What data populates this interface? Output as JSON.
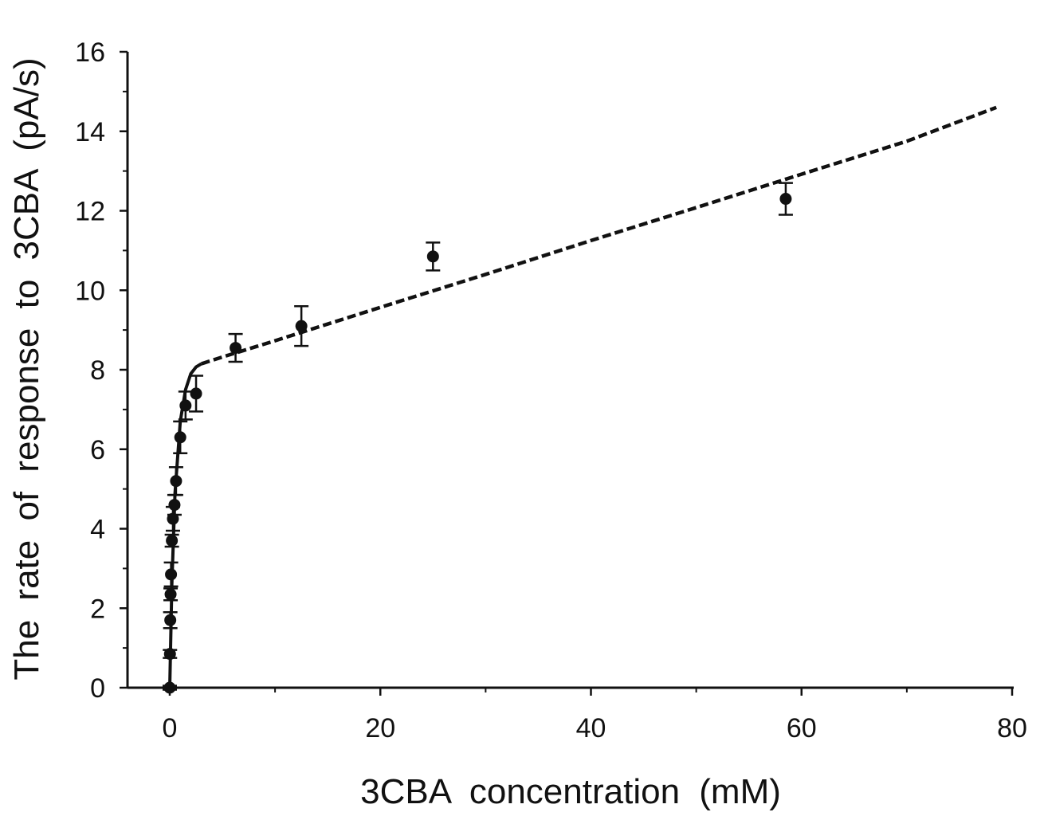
{
  "chart_data": {
    "type": "scatter",
    "title": "",
    "xlabel": "3CBA  concentration  (mM)",
    "ylabel": "The  rate  of  response  to  3CBA  (pA/s)",
    "xlim": [
      -4,
      80
    ],
    "ylim": [
      0,
      16
    ],
    "x_ticks": [
      0,
      20,
      40,
      60,
      80
    ],
    "y_ticks": [
      0,
      2,
      4,
      6,
      8,
      10,
      12,
      14,
      16
    ],
    "x_tick_labels": [
      "0",
      "20",
      "40",
      "60",
      "80"
    ],
    "y_tick_labels": [
      "0",
      "2",
      "4",
      "6",
      "8",
      "10",
      "12",
      "14",
      "16"
    ],
    "grid": false,
    "legend": "none",
    "series": [
      {
        "marker": "filled-circle",
        "points": [
          {
            "x": 0.0,
            "y": 0.0,
            "err": 0.05
          },
          {
            "x": 0.02,
            "y": 0.85,
            "err": 0.1
          },
          {
            "x": 0.05,
            "y": 1.7,
            "err": 0.2
          },
          {
            "x": 0.08,
            "y": 2.35,
            "err": 0.15
          },
          {
            "x": 0.12,
            "y": 2.85,
            "err": 0.3
          },
          {
            "x": 0.2,
            "y": 3.7,
            "err": 0.15
          },
          {
            "x": 0.3,
            "y": 4.25,
            "err": 0.3
          },
          {
            "x": 0.45,
            "y": 4.6,
            "err": 0.25
          },
          {
            "x": 0.6,
            "y": 5.2,
            "err": 0.35
          },
          {
            "x": 1.0,
            "y": 6.3,
            "err": 0.4
          },
          {
            "x": 1.5,
            "y": 7.1,
            "err": 0.35
          },
          {
            "x": 2.5,
            "y": 7.4,
            "err": 0.45
          },
          {
            "x": 6.25,
            "y": 8.55,
            "err": 0.35
          },
          {
            "x": 12.5,
            "y": 9.1,
            "err": 0.5
          },
          {
            "x": 25.0,
            "y": 10.85,
            "err": 0.35
          },
          {
            "x": 58.5,
            "y": 12.3,
            "err": 0.4
          }
        ]
      }
    ],
    "fit_curve": {
      "style": "dashed",
      "x": [
        0,
        0.2,
        0.5,
        1.0,
        1.5,
        2.0,
        2.5,
        3.0,
        5,
        10,
        20,
        30,
        40,
        50,
        60,
        70,
        78.5
      ],
      "y": [
        0,
        2.6,
        4.9,
        6.7,
        7.5,
        7.9,
        8.07,
        8.15,
        8.32,
        8.73,
        9.57,
        10.4,
        11.25,
        12.08,
        12.92,
        13.75,
        14.6
      ]
    }
  }
}
